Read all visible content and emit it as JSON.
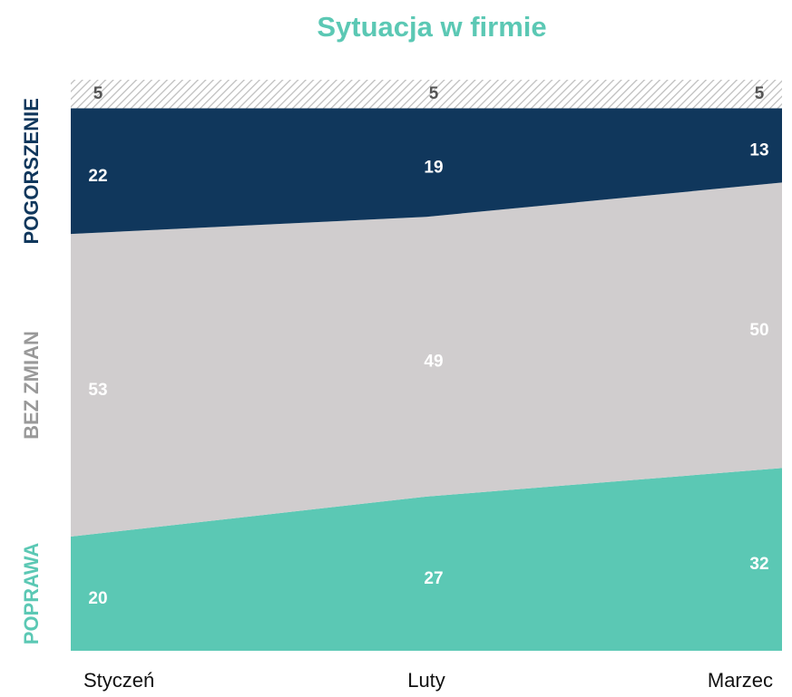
{
  "chart_data": {
    "type": "stacked_area",
    "title": "Sytuacja w firmie",
    "categories": [
      "Styczeń",
      "Luty",
      "Marzec"
    ],
    "ylim": [
      0,
      100
    ],
    "series": [
      {
        "name": "POPRAWA",
        "color": "#5bc8b4",
        "label_color": "#ffffff",
        "values": [
          20,
          27,
          32
        ]
      },
      {
        "name": "BEZ ZMIAN",
        "color": "#d0cdce",
        "name_color": "#999999",
        "label_color": "#ffffff",
        "values": [
          53,
          49,
          50
        ]
      },
      {
        "name": "POGORSZENIE",
        "color": "#10375c",
        "label_color": "#ffffff",
        "values": [
          22,
          19,
          13
        ]
      },
      {
        "color": "#bdbdbd",
        "hatch": true,
        "label_color": "#555555",
        "values": [
          5,
          5,
          5
        ]
      }
    ]
  }
}
